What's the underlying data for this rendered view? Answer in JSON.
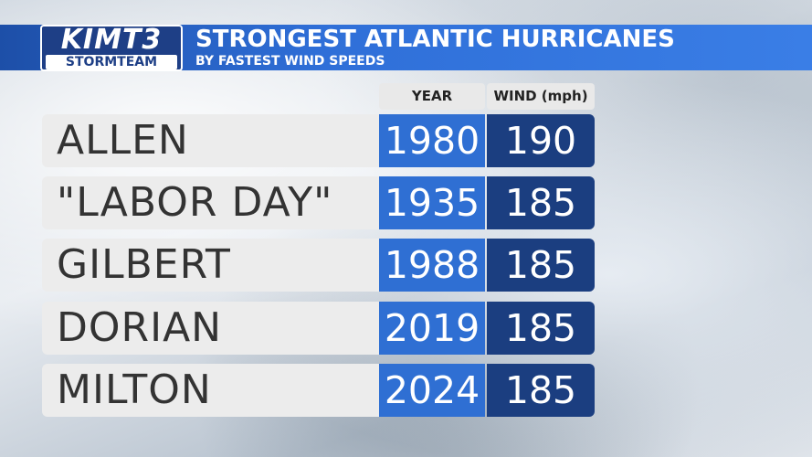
{
  "header": {
    "logo_top": "KIMT3",
    "logo_bottom": "STORMTEAM",
    "title": "STRONGEST ATLANTIC HURRICANES",
    "subtitle": "BY FASTEST WIND SPEEDS"
  },
  "table": {
    "columns": [
      "YEAR",
      "WIND (mph)"
    ],
    "rows": [
      [
        "ALLEN",
        1980,
        190
      ],
      [
        "\"LABOR DAY\"",
        1935,
        185
      ],
      [
        "GILBERT",
        1988,
        185
      ],
      [
        "DORIAN",
        2019,
        185
      ],
      [
        "MILTON",
        2024,
        185
      ]
    ]
  }
}
